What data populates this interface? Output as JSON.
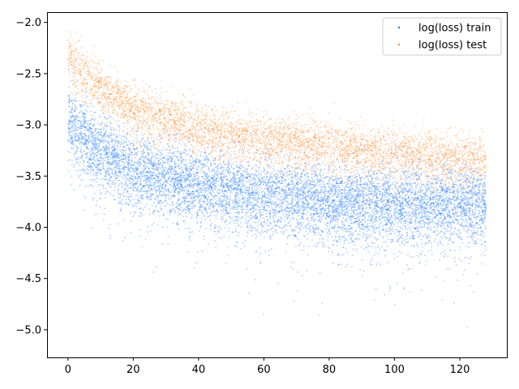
{
  "chart_data": {
    "type": "scatter",
    "title": "",
    "xlabel": "",
    "ylabel": "",
    "xlim": [
      -6.4,
      134.4
    ],
    "ylim": [
      -5.27,
      -1.9
    ],
    "x_ticks": [
      0,
      20,
      40,
      60,
      80,
      100,
      120
    ],
    "y_ticks": [
      -2.0,
      -2.5,
      -3.0,
      -3.5,
      -4.0,
      -4.5,
      -5.0
    ],
    "x_tick_labels": [
      "0",
      "20",
      "40",
      "60",
      "80",
      "100",
      "120"
    ],
    "y_tick_labels": [
      "−2.0",
      "−2.5",
      "−3.0",
      "−3.5",
      "−4.0",
      "−4.5",
      "−5.0"
    ],
    "grid": false,
    "legend_position": "top-right",
    "series": [
      {
        "name": "log(loss) train",
        "color": "#1a75ff",
        "x_range": [
          0,
          128
        ],
        "trend": [
          {
            "x": 0,
            "y": -2.95
          },
          {
            "x": 5,
            "y": -3.15
          },
          {
            "x": 10,
            "y": -3.25
          },
          {
            "x": 20,
            "y": -3.45
          },
          {
            "x": 40,
            "y": -3.6
          },
          {
            "x": 60,
            "y": -3.7
          },
          {
            "x": 80,
            "y": -3.75
          },
          {
            "x": 100,
            "y": -3.78
          },
          {
            "x": 128,
            "y": -3.8
          }
        ],
        "spread_sd": 0.18
      },
      {
        "name": "log(loss) test",
        "color": "#ff8c2e",
        "x_range": [
          0,
          128
        ],
        "trend": [
          {
            "x": 0,
            "y": -2.35
          },
          {
            "x": 5,
            "y": -2.5
          },
          {
            "x": 10,
            "y": -2.65
          },
          {
            "x": 20,
            "y": -2.85
          },
          {
            "x": 40,
            "y": -3.05
          },
          {
            "x": 60,
            "y": -3.15
          },
          {
            "x": 80,
            "y": -3.22
          },
          {
            "x": 100,
            "y": -3.28
          },
          {
            "x": 128,
            "y": -3.35
          }
        ],
        "spread_sd": 0.12
      }
    ]
  }
}
